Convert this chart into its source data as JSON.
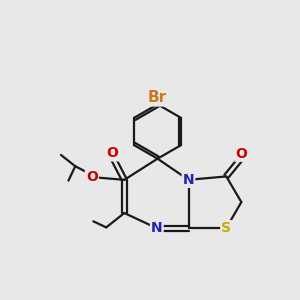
{
  "bg_color": "#e8e8e8",
  "bond_color": "#1a1a1a",
  "bond_width": 1.6,
  "dbo": 0.065,
  "atom_colors": {
    "Br": "#c87820",
    "O": "#cc0000",
    "N": "#2020bb",
    "S": "#c8aa00",
    "C": "#1a1a1a"
  },
  "fs": 10,
  "figsize": [
    3.0,
    3.0
  ],
  "dpi": 100,
  "xlim": [
    1.2,
    9.0
  ],
  "ylim": [
    3.0,
    9.5
  ]
}
